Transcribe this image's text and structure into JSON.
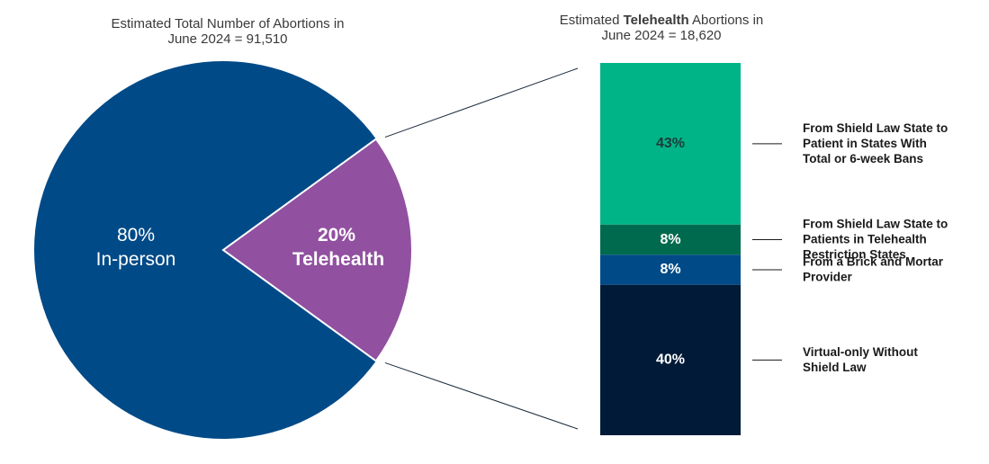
{
  "chart_data": [
    {
      "type": "pie",
      "title": "Estimated Total Number of Abortions in June 2024 = 91,510",
      "title_lines": [
        "Estimated Total Number of Abortions in",
        "June 2024 = 91,510"
      ],
      "slices": [
        {
          "name": "In-person",
          "value": 80,
          "value_label": "80%",
          "color": "#004a87"
        },
        {
          "name": "Telehealth",
          "value": 20,
          "value_label": "20%",
          "color": "#9150a0"
        }
      ]
    },
    {
      "type": "bar",
      "stacked": true,
      "title": "Estimated Telehealth Abortions in June 2024 = 18,620",
      "title_line1": {
        "before": "Estimated ",
        "bold": "Telehealth",
        "after": " Abortions in"
      },
      "title_line2": "June 2024 = 18,620",
      "segments": [
        {
          "name": "From Shield Law State to Patient in States With Total or 6-week Bans",
          "name_lines": [
            "From Shield Law State to",
            "Patient in States With",
            "Total or 6-week Bans"
          ],
          "value": 43,
          "value_label": "43%",
          "color": "#00b487",
          "label_color": "#1f3a3a"
        },
        {
          "name": "From Shield Law State to Patients in Telehealth Restriction States",
          "name_lines": [
            "From Shield Law State to",
            "Patients in Telehealth",
            "Restriction States"
          ],
          "value": 8,
          "value_label": "8%",
          "color": "#006a4e",
          "label_color": "#ffffff"
        },
        {
          "name": "From a Brick and Mortar Provider",
          "name_lines": [
            "From a Brick and Mortar",
            "Provider"
          ],
          "value": 8,
          "value_label": "8%",
          "color": "#004a87",
          "label_color": "#ffffff"
        },
        {
          "name": "Virtual-only Without Shield Law",
          "name_lines": [
            "Virtual-only Without",
            "Shield Law"
          ],
          "value": 40,
          "value_label": "40%",
          "color": "#001a38",
          "label_color": "#ffffff"
        }
      ]
    }
  ]
}
